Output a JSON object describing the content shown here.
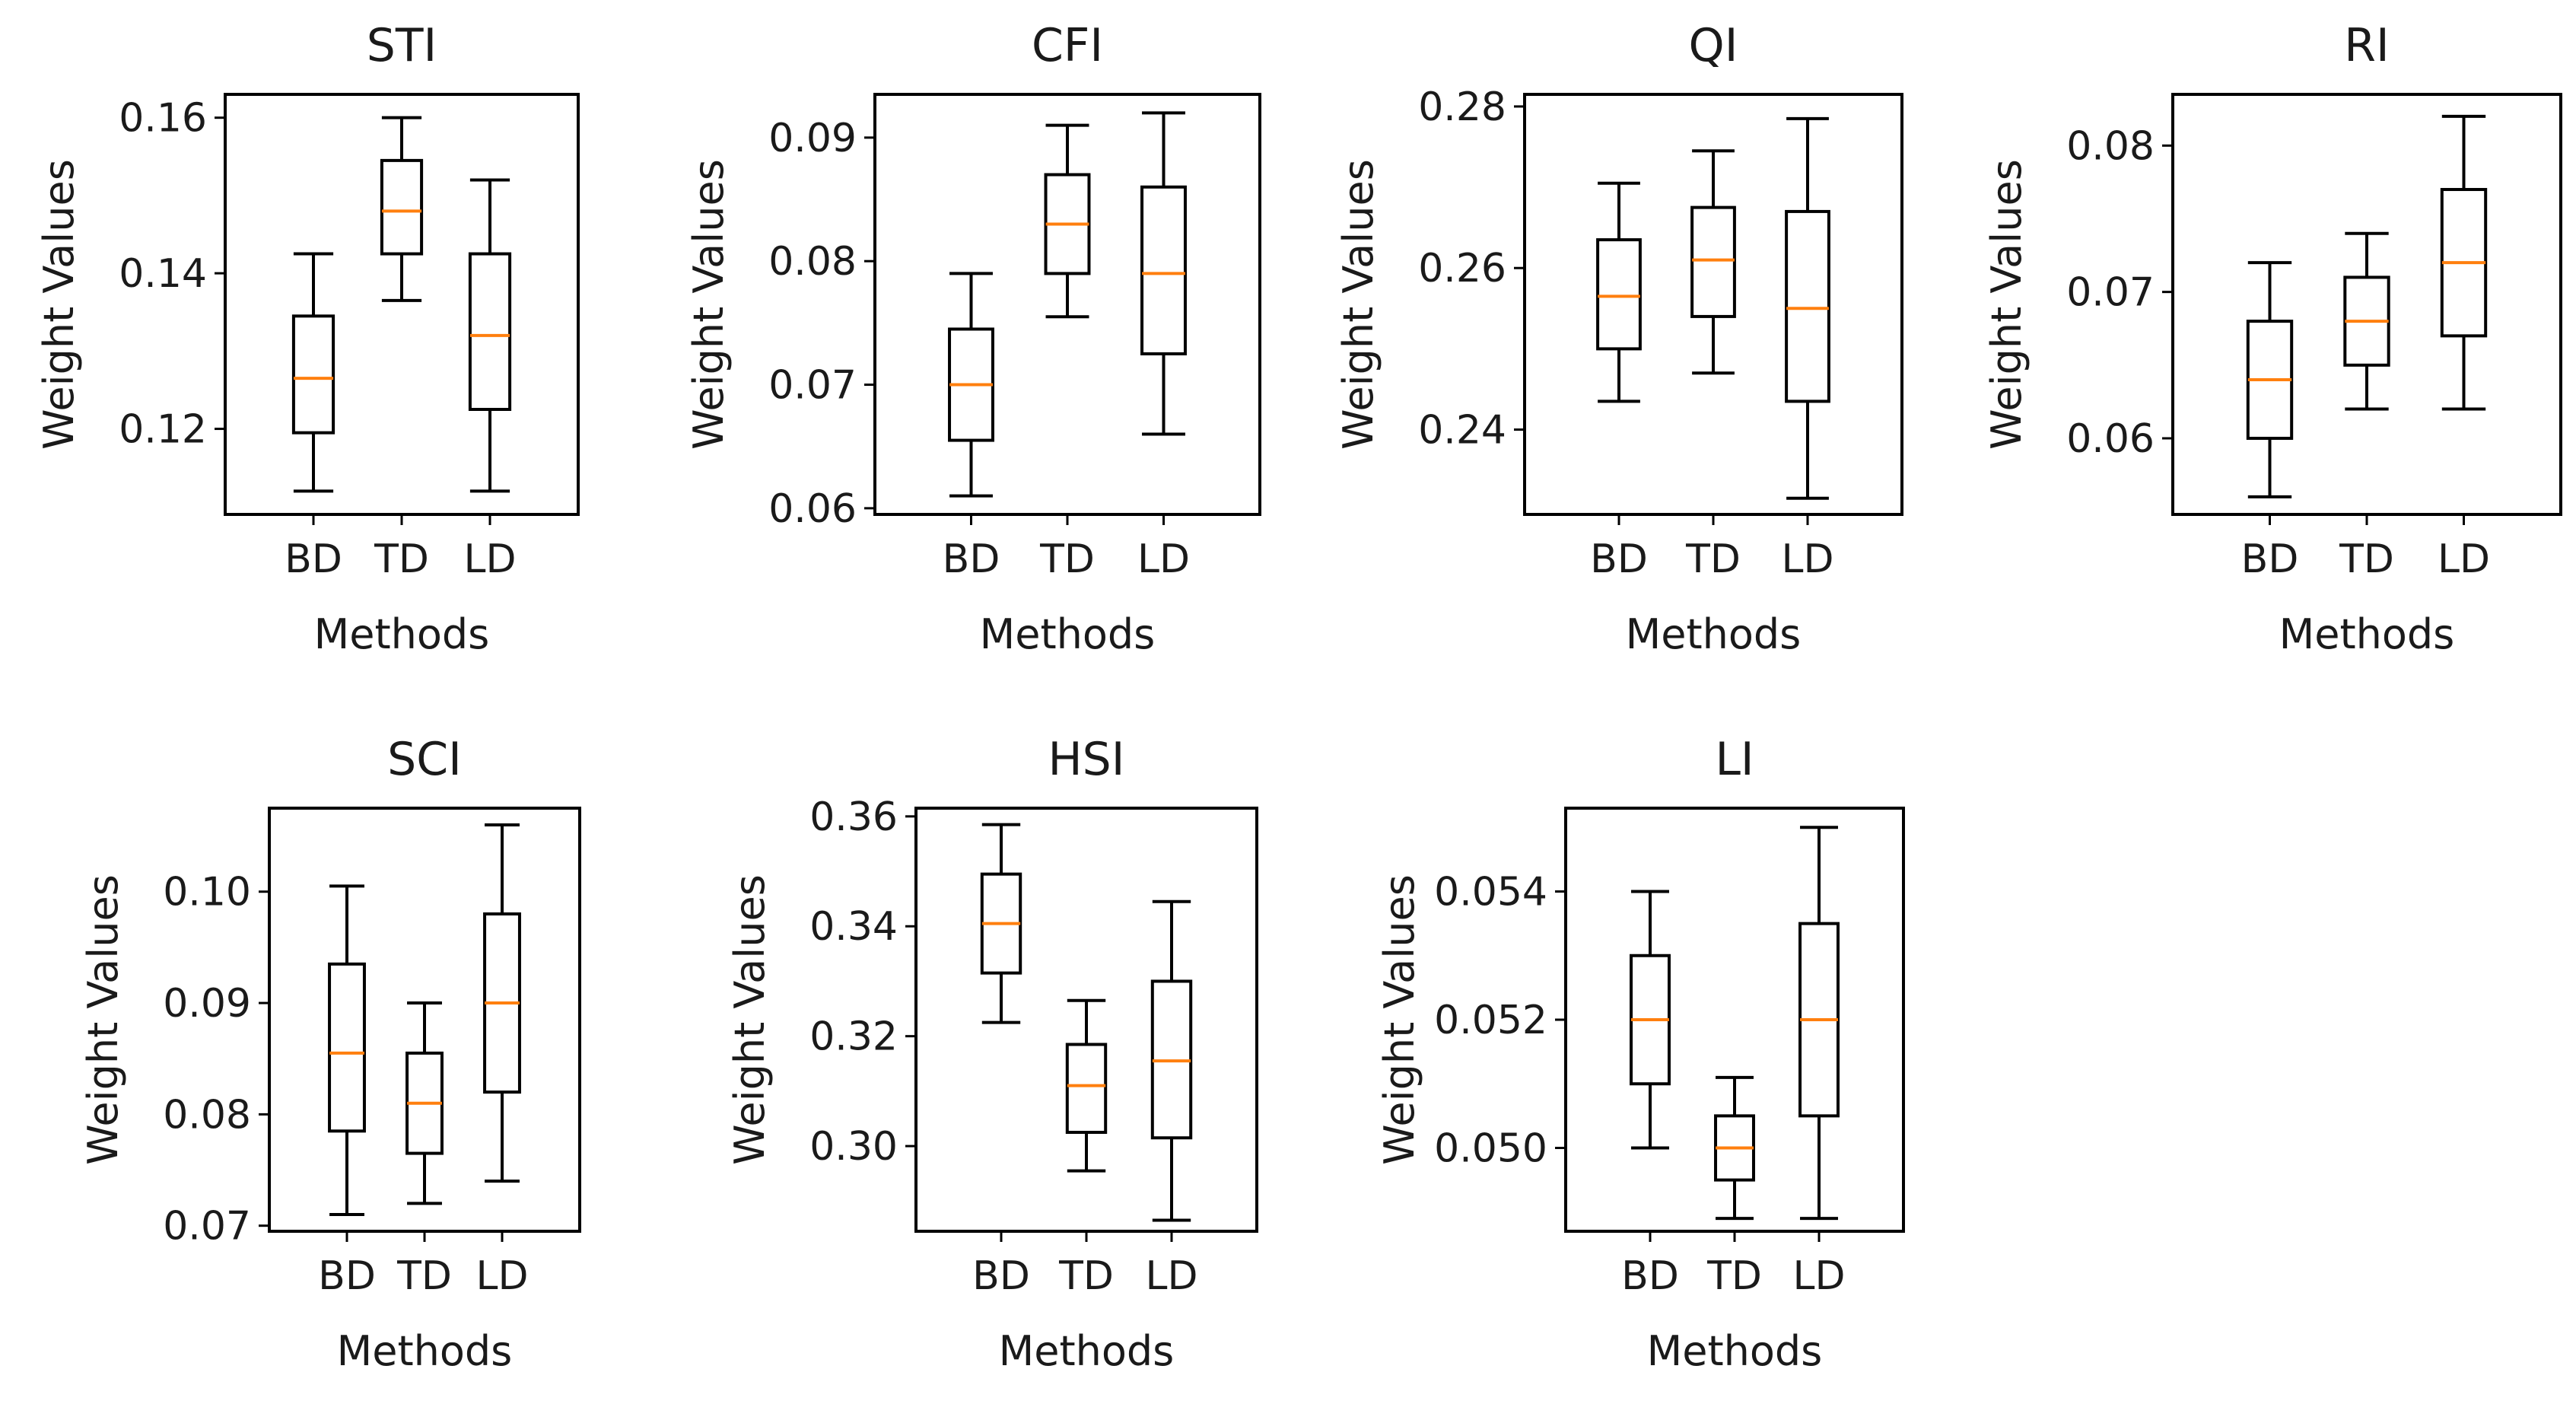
{
  "chart_data": [
    {
      "type": "box",
      "title": "STI",
      "xlabel": "Methods",
      "ylabel": "Weight Values",
      "categories": [
        "BD",
        "TD",
        "LD"
      ],
      "ylim": [
        0.109,
        0.163
      ],
      "yticks": [
        0.12,
        0.14,
        0.16
      ],
      "ytick_labels": [
        "0.12",
        "0.14",
        "0.16"
      ],
      "boxes": [
        {
          "whislo": 0.112,
          "q1": 0.1195,
          "med": 0.1265,
          "q3": 0.1345,
          "whishi": 0.1425
        },
        {
          "whislo": 0.1365,
          "q1": 0.1425,
          "med": 0.148,
          "q3": 0.1545,
          "whishi": 0.16
        },
        {
          "whislo": 0.112,
          "q1": 0.1225,
          "med": 0.132,
          "q3": 0.1425,
          "whishi": 0.152
        }
      ]
    },
    {
      "type": "box",
      "title": "CFI",
      "xlabel": "Methods",
      "ylabel": "Weight Values",
      "categories": [
        "BD",
        "TD",
        "LD"
      ],
      "ylim": [
        0.0595,
        0.0935
      ],
      "yticks": [
        0.06,
        0.07,
        0.08,
        0.09
      ],
      "ytick_labels": [
        "0.06",
        "0.07",
        "0.08",
        "0.09"
      ],
      "boxes": [
        {
          "whislo": 0.061,
          "q1": 0.0655,
          "med": 0.07,
          "q3": 0.0745,
          "whishi": 0.079
        },
        {
          "whislo": 0.0755,
          "q1": 0.079,
          "med": 0.083,
          "q3": 0.087,
          "whishi": 0.091
        },
        {
          "whislo": 0.066,
          "q1": 0.0725,
          "med": 0.079,
          "q3": 0.086,
          "whishi": 0.092
        }
      ]
    },
    {
      "type": "box",
      "title": "QI",
      "xlabel": "Methods",
      "ylabel": "Weight Values",
      "categories": [
        "BD",
        "TD",
        "LD"
      ],
      "ylim": [
        0.2295,
        0.2815
      ],
      "yticks": [
        0.24,
        0.26,
        0.28
      ],
      "ytick_labels": [
        "0.24",
        "0.26",
        "0.28"
      ],
      "boxes": [
        {
          "whislo": 0.2435,
          "q1": 0.25,
          "med": 0.2565,
          "q3": 0.2635,
          "whishi": 0.2705
        },
        {
          "whislo": 0.247,
          "q1": 0.254,
          "med": 0.261,
          "q3": 0.2675,
          "whishi": 0.2745
        },
        {
          "whislo": 0.2315,
          "q1": 0.2435,
          "med": 0.255,
          "q3": 0.267,
          "whishi": 0.2785
        }
      ]
    },
    {
      "type": "box",
      "title": "RI",
      "xlabel": "Methods",
      "ylabel": "Weight Values",
      "categories": [
        "BD",
        "TD",
        "LD"
      ],
      "ylim": [
        0.0548,
        0.0835
      ],
      "yticks": [
        0.06,
        0.07,
        0.08
      ],
      "ytick_labels": [
        "0.06",
        "0.07",
        "0.08"
      ],
      "boxes": [
        {
          "whislo": 0.056,
          "q1": 0.06,
          "med": 0.064,
          "q3": 0.068,
          "whishi": 0.072
        },
        {
          "whislo": 0.062,
          "q1": 0.065,
          "med": 0.068,
          "q3": 0.071,
          "whishi": 0.074
        },
        {
          "whislo": 0.062,
          "q1": 0.067,
          "med": 0.072,
          "q3": 0.077,
          "whishi": 0.082
        }
      ]
    },
    {
      "type": "box",
      "title": "SCI",
      "xlabel": "Methods",
      "ylabel": "Weight Values",
      "categories": [
        "BD",
        "TD",
        "LD"
      ],
      "ylim": [
        0.0695,
        0.1075
      ],
      "yticks": [
        0.07,
        0.08,
        0.09,
        0.1
      ],
      "ytick_labels": [
        "0.07",
        "0.08",
        "0.09",
        "0.10"
      ],
      "boxes": [
        {
          "whislo": 0.071,
          "q1": 0.0785,
          "med": 0.0855,
          "q3": 0.0935,
          "whishi": 0.1005
        },
        {
          "whislo": 0.072,
          "q1": 0.0765,
          "med": 0.081,
          "q3": 0.0855,
          "whishi": 0.09
        },
        {
          "whislo": 0.074,
          "q1": 0.082,
          "med": 0.09,
          "q3": 0.098,
          "whishi": 0.106
        }
      ]
    },
    {
      "type": "box",
      "title": "HSI",
      "xlabel": "Methods",
      "ylabel": "Weight Values",
      "categories": [
        "BD",
        "TD",
        "LD"
      ],
      "ylim": [
        0.2845,
        0.3615
      ],
      "yticks": [
        0.3,
        0.32,
        0.34,
        0.36
      ],
      "ytick_labels": [
        "0.30",
        "0.32",
        "0.34",
        "0.36"
      ],
      "boxes": [
        {
          "whislo": 0.3225,
          "q1": 0.3315,
          "med": 0.3405,
          "q3": 0.3495,
          "whishi": 0.3585
        },
        {
          "whislo": 0.2955,
          "q1": 0.3025,
          "med": 0.311,
          "q3": 0.3185,
          "whishi": 0.3265
        },
        {
          "whislo": 0.2865,
          "q1": 0.3015,
          "med": 0.3155,
          "q3": 0.33,
          "whishi": 0.3445
        }
      ]
    },
    {
      "type": "box",
      "title": "LI",
      "xlabel": "Methods",
      "ylabel": "Weight Values",
      "categories": [
        "BD",
        "TD",
        "LD"
      ],
      "ylim": [
        0.0487,
        0.0553
      ],
      "yticks": [
        0.05,
        0.052,
        0.054
      ],
      "ytick_labels": [
        "0.050",
        "0.052",
        "0.054"
      ],
      "boxes": [
        {
          "whislo": 0.05,
          "q1": 0.051,
          "med": 0.052,
          "q3": 0.053,
          "whishi": 0.054
        },
        {
          "whislo": 0.0489,
          "q1": 0.0495,
          "med": 0.05,
          "q3": 0.0505,
          "whishi": 0.0511
        },
        {
          "whislo": 0.0489,
          "q1": 0.0505,
          "med": 0.052,
          "q3": 0.0535,
          "whishi": 0.055
        }
      ]
    }
  ]
}
